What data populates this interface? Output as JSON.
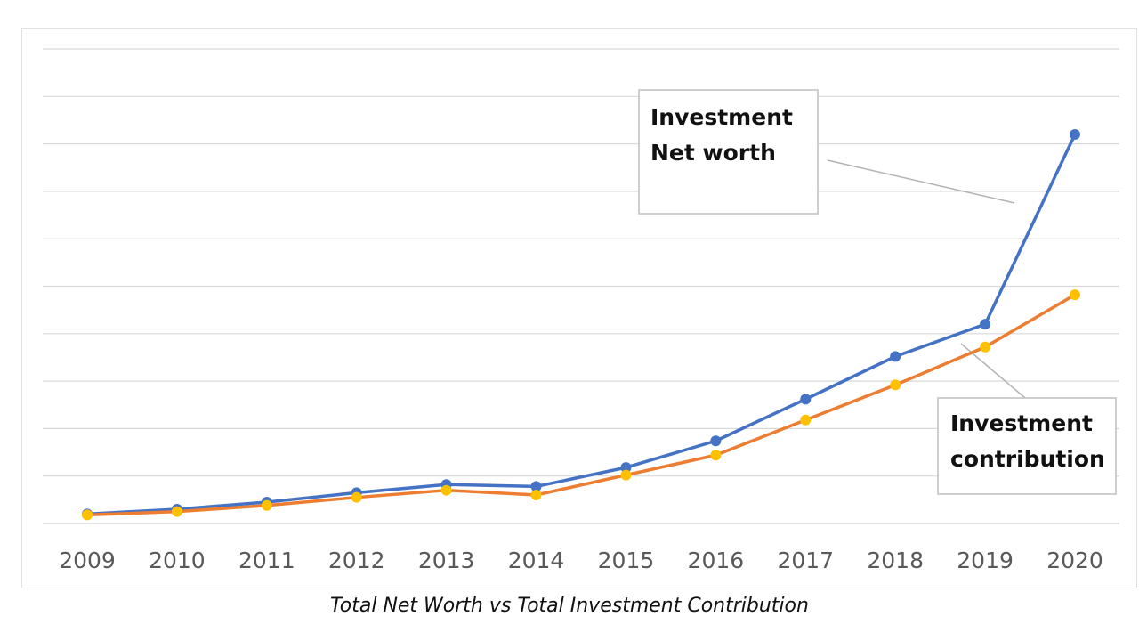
{
  "chart_data": {
    "type": "line",
    "categories": [
      "2009",
      "2010",
      "2011",
      "2012",
      "2013",
      "2014",
      "2015",
      "2016",
      "2017",
      "2018",
      "2019",
      "2020"
    ],
    "ylim": [
      0,
      10
    ],
    "grid": true,
    "gridline_count": 10,
    "y_tick_labels_shown": false,
    "series": [
      {
        "name": "Investment Net worth",
        "color": "#4472C4",
        "values": [
          0.2,
          0.3,
          0.45,
          0.65,
          0.82,
          0.78,
          1.18,
          1.74,
          2.62,
          3.52,
          4.2,
          8.2
        ]
      },
      {
        "name": "Investment contribution",
        "color": "#ED7D31",
        "marker_color": "#FFC000",
        "values": [
          0.18,
          0.25,
          0.38,
          0.55,
          0.7,
          0.6,
          1.02,
          1.44,
          2.18,
          2.92,
          3.72,
          4.82
        ]
      }
    ],
    "annotations": [
      {
        "series_index": 0,
        "lines": [
          "Investment",
          "Net worth"
        ]
      },
      {
        "series_index": 1,
        "lines": [
          "Investment",
          "contribution"
        ]
      }
    ]
  },
  "caption": "Total Net Worth vs Total Investment Contribution",
  "colors": {
    "gridline": "#d9d9d9",
    "axis_text": "#595959",
    "frame_border": "#e2e2e2"
  }
}
